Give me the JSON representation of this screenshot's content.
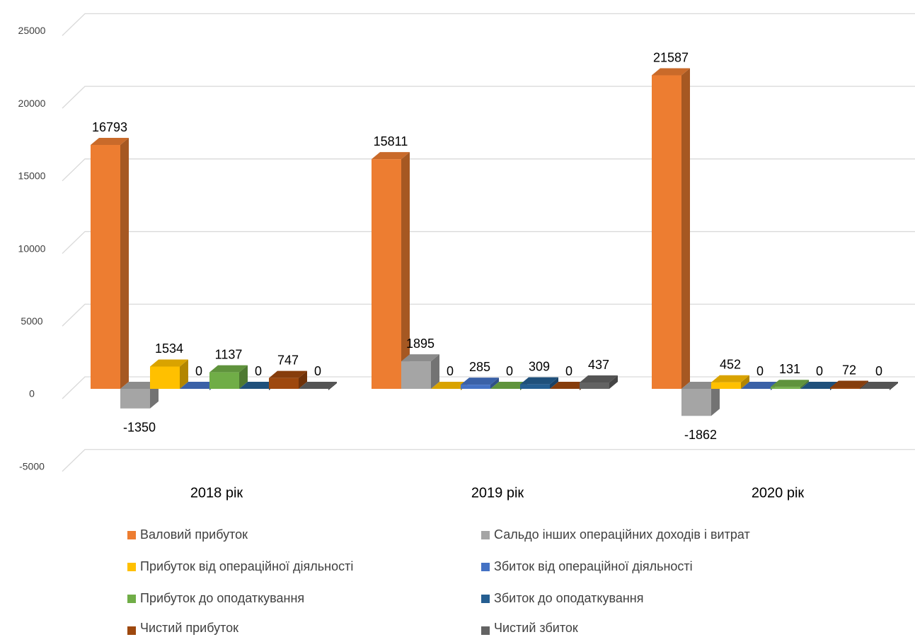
{
  "chart_data": {
    "type": "bar3d",
    "categories": [
      "2018 рік",
      "2019 рік",
      "2020 рік"
    ],
    "series": [
      {
        "name": "Валовий прибуток",
        "color": "#ED7D31",
        "values": [
          16793,
          15811,
          21587
        ]
      },
      {
        "name": "Сальдо інших операційних доходів і витрат",
        "color": "#A5A5A5",
        "values": [
          -1350,
          1895,
          -1862
        ]
      },
      {
        "name": "Прибуток від операційної діяльності",
        "color": "#FFC000",
        "values": [
          1534,
          0,
          452
        ]
      },
      {
        "name": "Збиток від операційної діяльності",
        "color": "#4472C4",
        "values": [
          0,
          285,
          0
        ]
      },
      {
        "name": "Прибуток до оподаткування",
        "color": "#70AD47",
        "values": [
          1137,
          0,
          131
        ]
      },
      {
        "name": "Збиток до оподаткування",
        "color": "#255E91",
        "values": [
          0,
          309,
          0
        ]
      },
      {
        "name": "Чистий прибуток",
        "color": "#9E480E",
        "values": [
          747,
          0,
          72
        ]
      },
      {
        "name": "Чистий збиток",
        "color": "#636363",
        "values": [
          0,
          437,
          0
        ]
      }
    ],
    "ylim": [
      -5000,
      25000
    ],
    "yticks": [
      -5000,
      0,
      5000,
      10000,
      15000,
      20000,
      25000
    ],
    "grid": true,
    "legend": "bottom"
  }
}
